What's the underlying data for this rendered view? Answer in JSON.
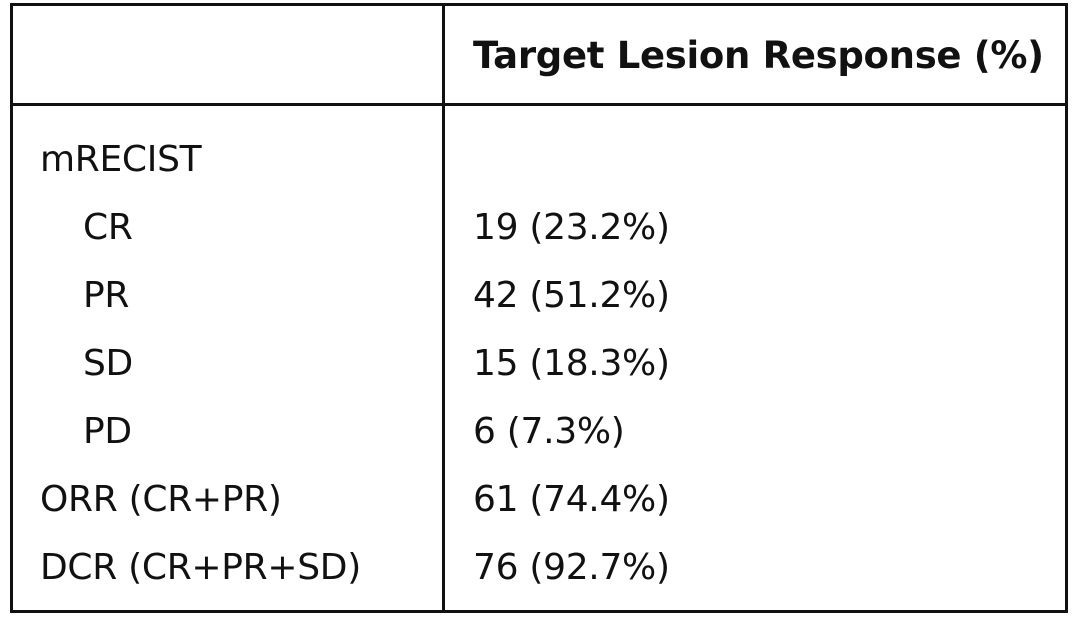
{
  "table": {
    "header": {
      "left": "",
      "right": "Target Lesion Response (%)"
    },
    "rows": [
      {
        "label": "mRECIST",
        "value": "",
        "indent": false
      },
      {
        "label": "CR",
        "value": "19 (23.2%)",
        "indent": true
      },
      {
        "label": "PR",
        "value": "42 (51.2%)",
        "indent": true
      },
      {
        "label": "SD",
        "value": "15 (18.3%)",
        "indent": true
      },
      {
        "label": "PD",
        "value": "6 (7.3%)",
        "indent": true
      },
      {
        "label": "ORR (CR+PR)",
        "value": "61 (74.4%)",
        "indent": false
      },
      {
        "label": "DCR (CR+PR+SD)",
        "value": "76 (92.7%)",
        "indent": false
      }
    ]
  }
}
